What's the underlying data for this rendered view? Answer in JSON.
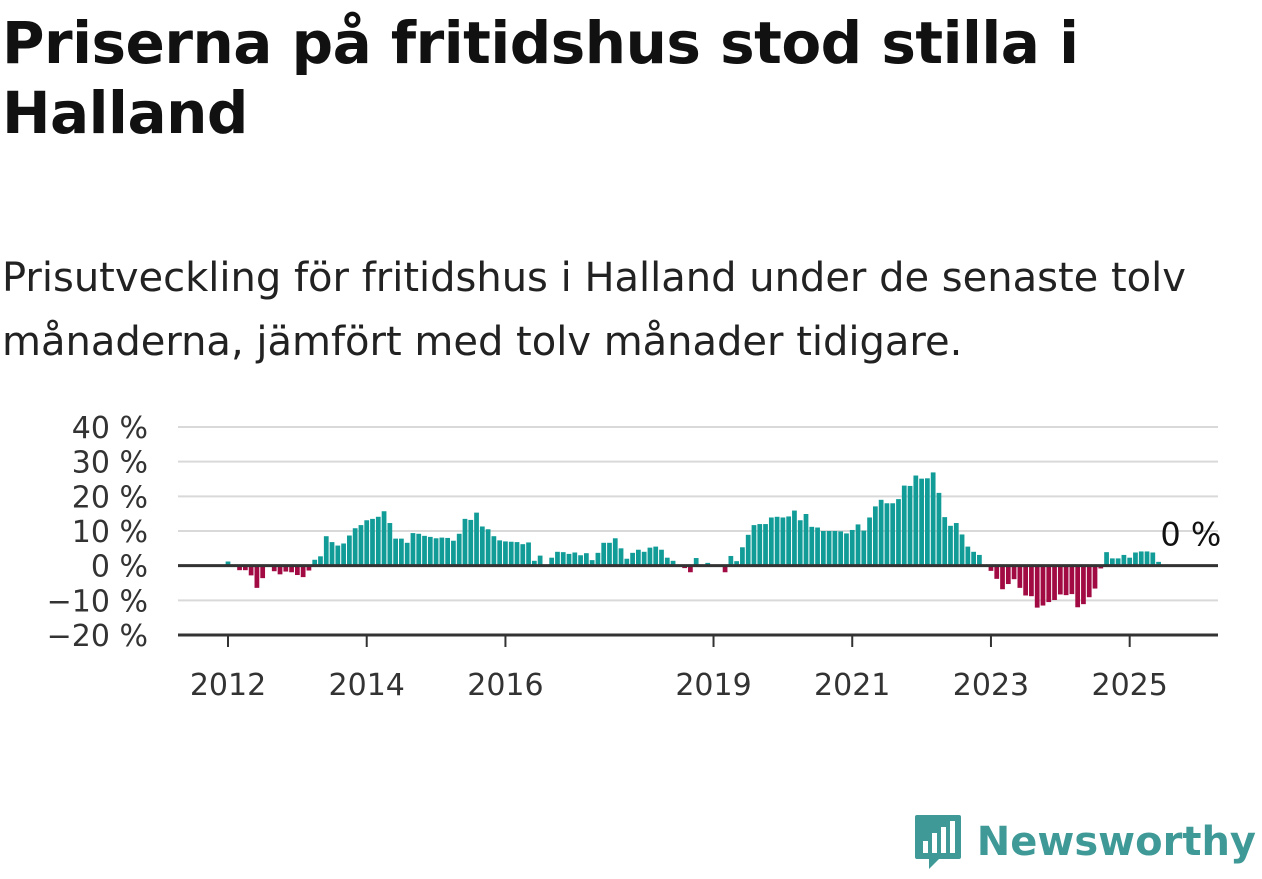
{
  "header": {
    "title": "Priserna på fritidshus stod stilla i Halland",
    "subtitle": "Prisutveckling för fritidshus i Halland under de senaste tolv månaderna, jämfört med tolv månader tidigare."
  },
  "brand": {
    "name": "Newsworthy",
    "icon": "newsworthy-logo-icon",
    "color": "#3f9a97"
  },
  "colors": {
    "positive": "#119c98",
    "negative": "#a10a42",
    "grid": "#d9d9d9",
    "axis": "#333333"
  },
  "chart_data": {
    "type": "bar",
    "title": "Priserna på fritidshus stod stilla i Halland",
    "xlabel": "",
    "ylabel": "",
    "ylim": [
      -20,
      40
    ],
    "yticks": [
      -20,
      -10,
      0,
      10,
      20,
      30,
      40
    ],
    "ytick_labels": [
      "−20 %",
      "−10 %",
      "0 %",
      "10 %",
      "20 %",
      "30 %",
      "40 %"
    ],
    "x_tick_labels": [
      "2012",
      "2014",
      "2016",
      "2019",
      "2021",
      "2023",
      "2025"
    ],
    "grid": true,
    "end_label": "0 %",
    "x_start": "2011-09",
    "x_end": "2025-05",
    "values": [
      0,
      0,
      0,
      0,
      1.2,
      0,
      -1.3,
      -1.3,
      -2.8,
      -6.4,
      -3.6,
      0,
      -1.6,
      -2.5,
      -1.7,
      -1.9,
      -2.7,
      -3.3,
      -1.4,
      1.7,
      2.7,
      8.5,
      6.8,
      5.8,
      6.4,
      8.7,
      10.8,
      11.7,
      13.1,
      13.5,
      14.1,
      15.7,
      12.3,
      7.8,
      7.8,
      6.6,
      9.4,
      9.2,
      8.6,
      8.3,
      7.9,
      8.1,
      8.0,
      7.2,
      9.2,
      13.5,
      13.2,
      15.3,
      11.3,
      10.5,
      8.5,
      7.3,
      7.0,
      6.9,
      6.8,
      6.2,
      6.7,
      1.4,
      2.9,
      0,
      2.3,
      4.0,
      3.9,
      3.4,
      3.8,
      3.0,
      3.6,
      1.6,
      3.7,
      6.6,
      6.6,
      7.9,
      5.0,
      2.0,
      3.7,
      4.6,
      4.0,
      5.2,
      5.5,
      4.6,
      2.3,
      1.4,
      0,
      -0.7,
      -1.9,
      2.2,
      0,
      0.8,
      0,
      0,
      -1.9,
      2.8,
      1.3,
      5.3,
      8.9,
      11.7,
      12.0,
      12.0,
      13.9,
      14.1,
      13.9,
      14.2,
      15.9,
      13.1,
      14.9,
      11.2,
      11.0,
      10.0,
      10.0,
      10.0,
      9.9,
      9.3,
      10.3,
      11.9,
      10.1,
      13.9,
      17.1,
      19.0,
      18.0,
      18.0,
      19.2,
      23.1,
      23.0,
      26.0,
      25.1,
      25.2,
      26.9,
      21.0,
      14.0,
      11.5,
      12.3,
      9.0,
      5.5,
      4.0,
      3.1,
      0,
      -1.5,
      -3.8,
      -6.8,
      -5.3,
      -3.9,
      -6.4,
      -8.6,
      -8.8,
      -12.1,
      -11.5,
      -10.5,
      -9.9,
      -8.3,
      -8.5,
      -8.2,
      -12.0,
      -11.1,
      -9.1,
      -6.6,
      -0.8,
      3.9,
      2.1,
      2.1,
      3.1,
      2.3,
      3.8,
      4.1,
      4.1,
      3.8,
      1.1,
      0
    ]
  }
}
